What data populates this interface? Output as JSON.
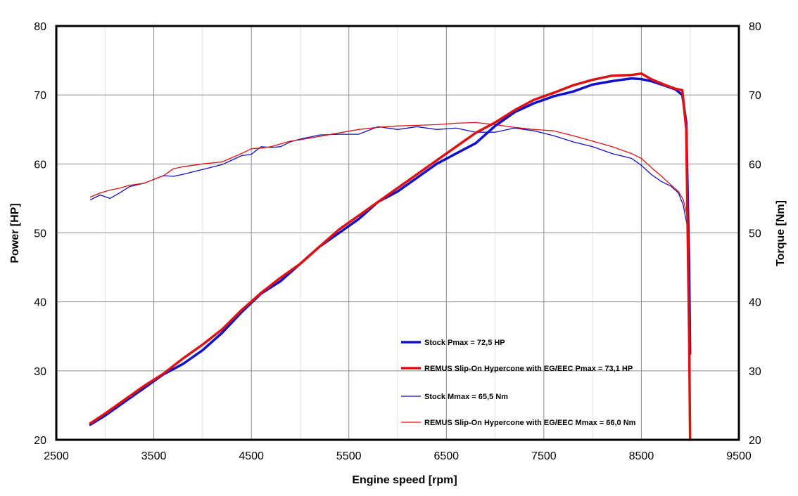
{
  "chart_data": {
    "type": "line",
    "xlabel": "Engine speed [rpm]",
    "ylabel_left": "Power [HP]",
    "ylabel_right": "Torque [Nm]",
    "xlim": [
      2500,
      9500
    ],
    "ylim_left": [
      20,
      80
    ],
    "ylim_right": [
      20,
      80
    ],
    "x_ticks": [
      "2500",
      "3500",
      "4500",
      "5500",
      "6500",
      "7500",
      "8500",
      "9500"
    ],
    "y_ticks_left": [
      "20",
      "30",
      "40",
      "50",
      "60",
      "70",
      "80"
    ],
    "y_ticks_right": [
      "20",
      "30",
      "40",
      "50",
      "60",
      "70",
      "80"
    ],
    "grid": true,
    "legend_position": "lower-right",
    "series": [
      {
        "name": "Stock Pmax = 72,5 HP",
        "axis": "left",
        "color": "#1010cc",
        "weight": "thick",
        "x": [
          2850,
          3000,
          3200,
          3400,
          3600,
          3800,
          4000,
          4200,
          4400,
          4600,
          4800,
          5000,
          5200,
          5400,
          5600,
          5800,
          6000,
          6200,
          6400,
          6600,
          6800,
          7000,
          7200,
          7400,
          7600,
          7800,
          8000,
          8200,
          8400,
          8500,
          8600,
          8750,
          8850,
          8920,
          8960,
          8990,
          9000
        ],
        "y": [
          22.2,
          23.5,
          25.5,
          27.5,
          29.5,
          31.0,
          33.0,
          35.5,
          38.5,
          41.2,
          43.0,
          45.5,
          48.0,
          50.0,
          52.0,
          54.5,
          56.0,
          58.0,
          60.0,
          61.5,
          63.0,
          65.5,
          67.5,
          68.8,
          69.8,
          70.5,
          71.5,
          72.0,
          72.4,
          72.3,
          72.0,
          71.3,
          70.8,
          70.0,
          66.0,
          45.0,
          32.5
        ]
      },
      {
        "name": "REMUS Slip-On Hypercone with EG/EEC Pmax =  73,1 HP",
        "axis": "left",
        "color": "#e01010",
        "weight": "thick",
        "x": [
          2850,
          3000,
          3200,
          3400,
          3600,
          3800,
          4000,
          4200,
          4400,
          4600,
          4800,
          5000,
          5200,
          5400,
          5600,
          5800,
          6000,
          6200,
          6400,
          6600,
          6800,
          7000,
          7200,
          7400,
          7600,
          7800,
          8000,
          8200,
          8400,
          8500,
          8600,
          8750,
          8850,
          8920,
          8960,
          8990,
          9000
        ],
        "y": [
          22.4,
          23.8,
          25.8,
          27.8,
          29.6,
          31.8,
          33.8,
          36.0,
          38.8,
          41.3,
          43.5,
          45.5,
          48.0,
          50.5,
          52.5,
          54.5,
          56.5,
          58.5,
          60.5,
          62.5,
          64.5,
          66.0,
          67.8,
          69.3,
          70.3,
          71.4,
          72.2,
          72.8,
          72.9,
          73.1,
          72.3,
          71.4,
          70.9,
          70.7,
          65.0,
          35.0,
          20.0
        ]
      },
      {
        "name": "Stock Mmax = 65,5 Nm",
        "axis": "right",
        "color": "#1010cc",
        "weight": "thin",
        "x": [
          2850,
          2950,
          3050,
          3150,
          3250,
          3400,
          3600,
          3700,
          3800,
          4000,
          4200,
          4400,
          4500,
          4600,
          4700,
          4800,
          4900,
          5000,
          5200,
          5400,
          5600,
          5800,
          6000,
          6200,
          6400,
          6600,
          6800,
          7000,
          7200,
          7400,
          7600,
          7800,
          8000,
          8200,
          8400,
          8500,
          8600,
          8700,
          8800,
          8880,
          8930,
          8970,
          8990,
          9000
        ],
        "y": [
          54.8,
          55.5,
          55.0,
          55.8,
          56.7,
          57.2,
          58.3,
          58.2,
          58.5,
          59.2,
          59.9,
          61.2,
          61.4,
          62.5,
          62.4,
          62.5,
          63.2,
          63.6,
          64.2,
          64.3,
          64.3,
          65.4,
          65.0,
          65.4,
          65.0,
          65.2,
          64.6,
          64.6,
          65.2,
          64.8,
          64.1,
          63.2,
          62.5,
          61.5,
          60.8,
          59.8,
          58.5,
          57.5,
          56.8,
          55.8,
          54.0,
          51.0,
          30.0,
          20.5
        ]
      },
      {
        "name": "REMUS Slip-On Hypercone with EG/EEC Mmax = 66,0 Nm",
        "axis": "right",
        "color": "#e01010",
        "weight": "thin",
        "x": [
          2850,
          2950,
          3050,
          3150,
          3250,
          3400,
          3600,
          3700,
          3800,
          4000,
          4200,
          4400,
          4500,
          4600,
          4700,
          4800,
          4900,
          5000,
          5200,
          5400,
          5600,
          5800,
          6000,
          6200,
          6400,
          6600,
          6800,
          7000,
          7200,
          7400,
          7600,
          7800,
          8000,
          8200,
          8400,
          8500,
          8600,
          8700,
          8800,
          8880,
          8930,
          8970,
          8990,
          9000
        ],
        "y": [
          55.2,
          55.8,
          56.2,
          56.5,
          56.9,
          57.2,
          58.3,
          59.3,
          59.6,
          60.0,
          60.3,
          61.5,
          62.2,
          62.3,
          62.5,
          62.9,
          63.3,
          63.5,
          64.0,
          64.5,
          65.0,
          65.3,
          65.5,
          65.6,
          65.7,
          65.9,
          66.0,
          65.7,
          65.3,
          65.0,
          64.8,
          64.1,
          63.3,
          62.5,
          61.5,
          60.8,
          59.5,
          58.3,
          57.0,
          56.0,
          54.8,
          52.5,
          35.0,
          20.0
        ]
      }
    ]
  }
}
